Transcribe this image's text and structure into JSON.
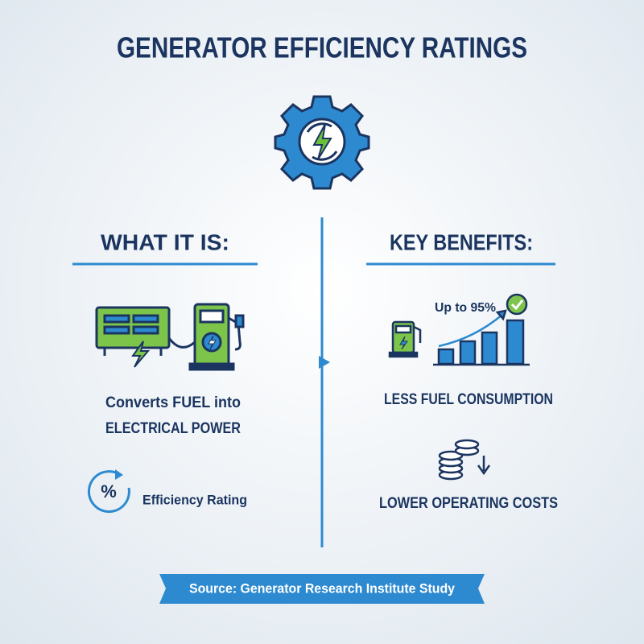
{
  "header": {
    "title": "GENERATOR EFFICIENCY RATINGS"
  },
  "left": {
    "heading": "WHAT IT IS:",
    "description": [
      "Converts FUEL into",
      "ELECTRICAL POWER"
    ],
    "badge_symbol": "%",
    "badge_label": "Efficiency Rating"
  },
  "right": {
    "heading": "KEY BENEFITS:",
    "chart_label": "Up to 95%",
    "benefits": [
      "LESS FUEL CONSUMPTION",
      "LOWER OPERATING COSTS"
    ]
  },
  "footer": {
    "source": "Source: Generator Research Institute Study"
  }
}
